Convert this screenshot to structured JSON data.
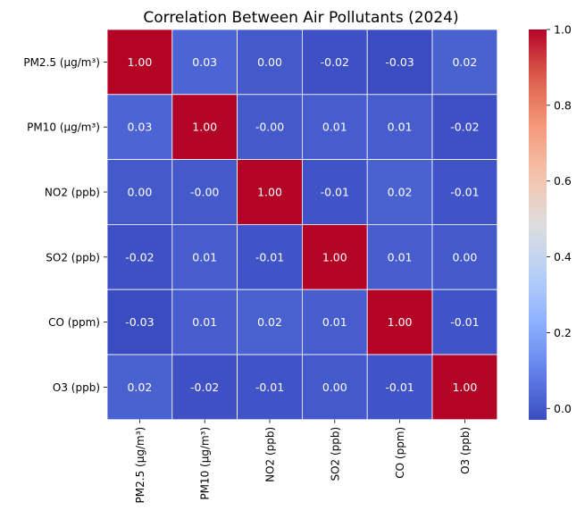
{
  "chart_data": {
    "type": "heatmap",
    "title": "Correlation Between Air Pollutants (2024)",
    "xlabel": "",
    "ylabel": "",
    "row_labels": [
      "PM2.5 (µg/m³)",
      "PM10 (µg/m³)",
      "NO2 (ppb)",
      "SO2 (ppb)",
      "CO (ppm)",
      "O3 (ppb)"
    ],
    "col_labels": [
      "PM2.5 (µg/m³)",
      "PM10 (µg/m³)",
      "NO2 (ppb)",
      "SO2 (ppb)",
      "CO (ppm)",
      "O3 (ppb)"
    ],
    "values": [
      [
        1.0,
        0.03,
        0.0,
        -0.02,
        -0.03,
        0.02
      ],
      [
        0.03,
        1.0,
        -0.0,
        0.01,
        0.01,
        -0.02
      ],
      [
        0.0,
        -0.0,
        1.0,
        -0.01,
        0.02,
        -0.01
      ],
      [
        -0.02,
        0.01,
        -0.01,
        1.0,
        0.01,
        0.0
      ],
      [
        -0.03,
        0.01,
        0.02,
        0.01,
        1.0,
        -0.01
      ],
      [
        0.02,
        -0.02,
        -0.01,
        0.0,
        -0.01,
        1.0
      ]
    ],
    "value_labels": [
      [
        "1.00",
        "0.03",
        "0.00",
        "-0.02",
        "-0.03",
        "0.02"
      ],
      [
        "0.03",
        "1.00",
        "-0.00",
        "0.01",
        "0.01",
        "-0.02"
      ],
      [
        "0.00",
        "-0.00",
        "1.00",
        "-0.01",
        "0.02",
        "-0.01"
      ],
      [
        "-0.02",
        "0.01",
        "-0.01",
        "1.00",
        "0.01",
        "0.00"
      ],
      [
        "-0.03",
        "0.01",
        "0.02",
        "0.01",
        "1.00",
        "-0.01"
      ],
      [
        "0.02",
        "-0.02",
        "-0.01",
        "0.00",
        "-0.01",
        "1.00"
      ]
    ],
    "colormap": "coolwarm",
    "colorbar": {
      "range": [
        -0.03,
        1.0
      ],
      "ticks": [
        0.0,
        0.2,
        0.4,
        0.6,
        0.8,
        1.0
      ],
      "tick_labels": [
        "0.0",
        "0.2",
        "0.4",
        "0.6",
        "0.8",
        "1.0"
      ]
    },
    "grid_line_color": "#ffffff",
    "annotation_color": "#ffffff"
  }
}
